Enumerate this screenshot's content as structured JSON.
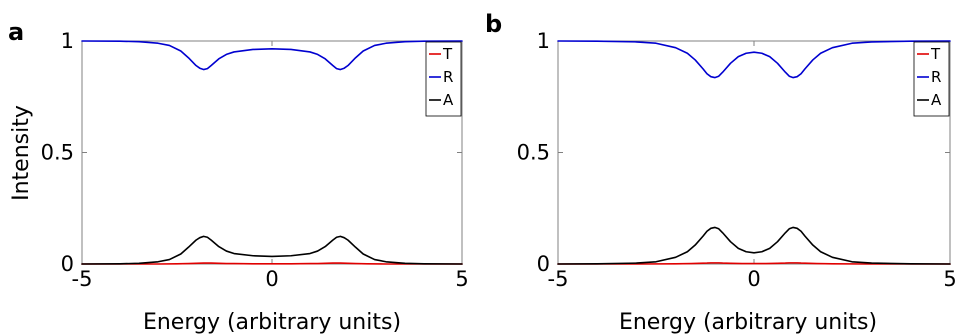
{
  "chart_data": [
    {
      "panel_label": "a",
      "type": "line",
      "xlabel": "Energy (arbitrary units)",
      "ylabel": "Intensity",
      "xlim": [
        -5,
        5
      ],
      "ylim": [
        0,
        1
      ],
      "xticks": [
        "-5",
        "0",
        "5"
      ],
      "yticks": [
        "0",
        "0.5",
        "1"
      ],
      "grid": false,
      "legend_position": "top-right",
      "series": [
        {
          "name": "T",
          "color": "#e00000",
          "x": [
            -5,
            -3,
            -2.5,
            -2.2,
            -2,
            -1.8,
            -1.6,
            -1.4,
            -1.2,
            -1,
            -0.5,
            0,
            0.5,
            1,
            1.2,
            1.4,
            1.6,
            1.8,
            2,
            2.2,
            2.5,
            3,
            5
          ],
          "y": [
            0.0,
            0.0,
            0.001,
            0.002,
            0.003,
            0.004,
            0.004,
            0.003,
            0.002,
            0.002,
            0.001,
            0.001,
            0.001,
            0.002,
            0.002,
            0.003,
            0.004,
            0.004,
            0.003,
            0.002,
            0.001,
            0.0,
            0.0
          ]
        },
        {
          "name": "R",
          "color": "#0000d0",
          "x": [
            -5,
            -4,
            -3.5,
            -3,
            -2.7,
            -2.4,
            -2.2,
            -2,
            -1.9,
            -1.8,
            -1.7,
            -1.6,
            -1.4,
            -1.2,
            -1,
            -0.5,
            0,
            0.5,
            1,
            1.2,
            1.4,
            1.6,
            1.7,
            1.8,
            1.9,
            2,
            2.2,
            2.4,
            2.7,
            3,
            3.5,
            4,
            5
          ],
          "y": [
            1.0,
            0.999,
            0.997,
            0.99,
            0.98,
            0.955,
            0.925,
            0.89,
            0.878,
            0.872,
            0.876,
            0.89,
            0.92,
            0.94,
            0.951,
            0.962,
            0.965,
            0.962,
            0.951,
            0.94,
            0.92,
            0.89,
            0.876,
            0.872,
            0.878,
            0.89,
            0.925,
            0.955,
            0.98,
            0.99,
            0.997,
            0.999,
            1.0
          ]
        },
        {
          "name": "A",
          "color": "#000000",
          "x": [
            -5,
            -4,
            -3.5,
            -3,
            -2.7,
            -2.4,
            -2.2,
            -2,
            -1.9,
            -1.8,
            -1.7,
            -1.6,
            -1.4,
            -1.2,
            -1,
            -0.5,
            0,
            0.5,
            1,
            1.2,
            1.4,
            1.6,
            1.7,
            1.8,
            1.9,
            2,
            2.2,
            2.4,
            2.7,
            3,
            3.5,
            4,
            5
          ],
          "y": [
            0.0,
            0.001,
            0.003,
            0.01,
            0.02,
            0.045,
            0.075,
            0.107,
            0.118,
            0.124,
            0.12,
            0.107,
            0.078,
            0.058,
            0.047,
            0.037,
            0.034,
            0.037,
            0.047,
            0.058,
            0.078,
            0.107,
            0.12,
            0.124,
            0.118,
            0.107,
            0.075,
            0.045,
            0.02,
            0.01,
            0.003,
            0.001,
            0.0
          ]
        }
      ]
    },
    {
      "panel_label": "b",
      "type": "line",
      "xlabel": "Energy (arbitrary units)",
      "ylabel": "",
      "xlim": [
        -5,
        5
      ],
      "ylim": [
        0,
        1
      ],
      "xticks": [
        "-5",
        "0",
        "5"
      ],
      "yticks": [
        "0",
        "0.5",
        "1"
      ],
      "grid": false,
      "legend_position": "top-right",
      "series": [
        {
          "name": "T",
          "color": "#e00000",
          "x": [
            -5,
            -3,
            -2,
            -1.6,
            -1.4,
            -1.2,
            -1.1,
            -1,
            -0.9,
            -0.8,
            -0.6,
            -0.3,
            0,
            0.3,
            0.6,
            0.8,
            0.9,
            1,
            1.1,
            1.2,
            1.4,
            1.6,
            2,
            3,
            5
          ],
          "y": [
            0.0,
            0.0,
            0.001,
            0.002,
            0.003,
            0.004,
            0.005,
            0.005,
            0.005,
            0.004,
            0.003,
            0.002,
            0.002,
            0.002,
            0.003,
            0.004,
            0.005,
            0.005,
            0.005,
            0.004,
            0.003,
            0.002,
            0.001,
            0.0,
            0.0
          ]
        },
        {
          "name": "R",
          "color": "#0000d0",
          "x": [
            -5,
            -4,
            -3,
            -2.5,
            -2,
            -1.7,
            -1.5,
            -1.3,
            -1.2,
            -1.1,
            -1,
            -0.9,
            -0.8,
            -0.6,
            -0.4,
            -0.2,
            0,
            0.2,
            0.4,
            0.6,
            0.8,
            0.9,
            1,
            1.1,
            1.2,
            1.3,
            1.5,
            1.7,
            2,
            2.5,
            3,
            4,
            5
          ],
          "y": [
            1.0,
            0.999,
            0.996,
            0.99,
            0.97,
            0.945,
            0.915,
            0.875,
            0.853,
            0.84,
            0.836,
            0.842,
            0.86,
            0.9,
            0.93,
            0.945,
            0.95,
            0.945,
            0.93,
            0.9,
            0.86,
            0.842,
            0.836,
            0.84,
            0.853,
            0.875,
            0.915,
            0.945,
            0.97,
            0.99,
            0.996,
            0.999,
            1.0
          ]
        },
        {
          "name": "A",
          "color": "#000000",
          "x": [
            -5,
            -4,
            -3,
            -2.5,
            -2,
            -1.7,
            -1.5,
            -1.3,
            -1.2,
            -1.1,
            -1,
            -0.9,
            -0.8,
            -0.6,
            -0.4,
            -0.2,
            0,
            0.2,
            0.4,
            0.6,
            0.8,
            0.9,
            1,
            1.1,
            1.2,
            1.3,
            1.5,
            1.7,
            2,
            2.5,
            3,
            4,
            5
          ],
          "y": [
            0.0,
            0.001,
            0.004,
            0.01,
            0.03,
            0.055,
            0.085,
            0.125,
            0.147,
            0.16,
            0.164,
            0.158,
            0.14,
            0.1,
            0.07,
            0.055,
            0.05,
            0.055,
            0.07,
            0.1,
            0.14,
            0.158,
            0.164,
            0.16,
            0.147,
            0.125,
            0.085,
            0.055,
            0.03,
            0.01,
            0.004,
            0.001,
            0.0
          ]
        }
      ]
    }
  ]
}
